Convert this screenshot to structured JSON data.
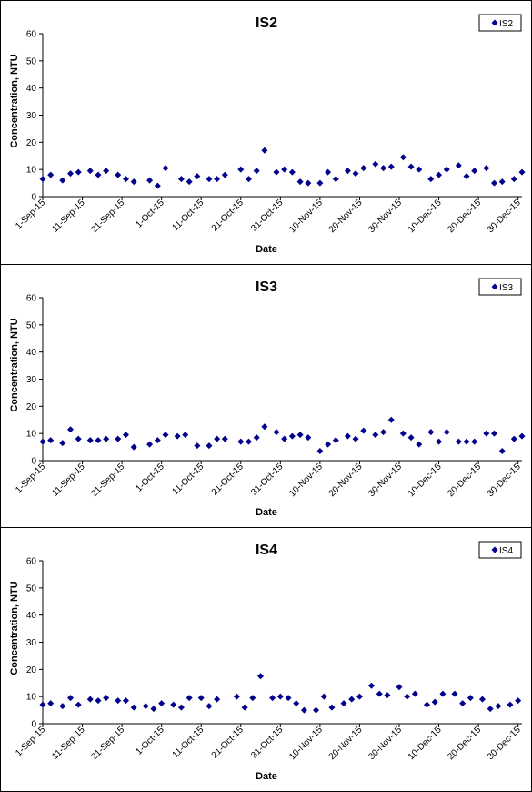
{
  "chart_data": [
    {
      "type": "scatter",
      "title": "IS2",
      "xlabel": "Date",
      "ylabel": "Concentration, NTU",
      "xlim": [
        "2015-09-01",
        "2015-12-31"
      ],
      "ylim": [
        0,
        60
      ],
      "yticks": [
        0,
        10,
        20,
        30,
        40,
        50,
        60
      ],
      "xtick_labels": [
        "1-Sep-15",
        "11-Sep-15",
        "21-Sep-15",
        "1-Oct-15",
        "11-Oct-15",
        "21-Oct-15",
        "31-Oct-15",
        "10-Nov-15",
        "20-Nov-15",
        "30-Nov-15",
        "10-Dec-15",
        "20-Dec-15",
        "30-Dec-15"
      ],
      "xtick_dates": [
        "2015-09-01",
        "2015-09-11",
        "2015-09-21",
        "2015-10-01",
        "2015-10-11",
        "2015-10-21",
        "2015-10-31",
        "2015-11-10",
        "2015-11-20",
        "2015-11-30",
        "2015-12-10",
        "2015-12-20",
        "2015-12-30"
      ],
      "legend": "top-right",
      "grid": false,
      "marker_color": "#00008B",
      "series": [
        {
          "name": "IS2",
          "points": [
            [
              "2015-09-01",
              6.5
            ],
            [
              "2015-09-03",
              8
            ],
            [
              "2015-09-06",
              6
            ],
            [
              "2015-09-08",
              8.5
            ],
            [
              "2015-09-10",
              9
            ],
            [
              "2015-09-13",
              9.5
            ],
            [
              "2015-09-15",
              8
            ],
            [
              "2015-09-17",
              9.5
            ],
            [
              "2015-09-20",
              8
            ],
            [
              "2015-09-22",
              6.5
            ],
            [
              "2015-09-24",
              5.5
            ],
            [
              "2015-09-28",
              6
            ],
            [
              "2015-09-30",
              4
            ],
            [
              "2015-10-02",
              10.5
            ],
            [
              "2015-10-06",
              6.5
            ],
            [
              "2015-10-08",
              5.5
            ],
            [
              "2015-10-10",
              7.5
            ],
            [
              "2015-10-13",
              6.5
            ],
            [
              "2015-10-15",
              6.5
            ],
            [
              "2015-10-17",
              8
            ],
            [
              "2015-10-21",
              10
            ],
            [
              "2015-10-23",
              6.5
            ],
            [
              "2015-10-25",
              9.5
            ],
            [
              "2015-10-27",
              17
            ],
            [
              "2015-10-30",
              9
            ],
            [
              "2015-11-01",
              10
            ],
            [
              "2015-11-03",
              9
            ],
            [
              "2015-11-05",
              5.5
            ],
            [
              "2015-11-07",
              5
            ],
            [
              "2015-11-10",
              5
            ],
            [
              "2015-11-12",
              9
            ],
            [
              "2015-11-14",
              6.5
            ],
            [
              "2015-11-17",
              9.5
            ],
            [
              "2015-11-19",
              8.5
            ],
            [
              "2015-11-21",
              10.5
            ],
            [
              "2015-11-24",
              12
            ],
            [
              "2015-11-26",
              10.5
            ],
            [
              "2015-11-28",
              11
            ],
            [
              "2015-12-01",
              14.5
            ],
            [
              "2015-12-03",
              11
            ],
            [
              "2015-12-05",
              10
            ],
            [
              "2015-12-08",
              6.5
            ],
            [
              "2015-12-10",
              8
            ],
            [
              "2015-12-12",
              10
            ],
            [
              "2015-12-15",
              11.5
            ],
            [
              "2015-12-17",
              7.5
            ],
            [
              "2015-12-19",
              9.5
            ],
            [
              "2015-12-22",
              10.5
            ],
            [
              "2015-12-24",
              5
            ],
            [
              "2015-12-26",
              5.5
            ],
            [
              "2015-12-29",
              6.5
            ],
            [
              "2015-12-31",
              9
            ]
          ]
        }
      ]
    },
    {
      "type": "scatter",
      "title": "IS3",
      "xlabel": "Date",
      "ylabel": "Concentration, NTU",
      "xlim": [
        "2015-09-01",
        "2015-12-31"
      ],
      "ylim": [
        0,
        60
      ],
      "yticks": [
        0,
        10,
        20,
        30,
        40,
        50,
        60
      ],
      "xtick_labels": [
        "1-Sep-15",
        "11-Sep-15",
        "21-Sep-15",
        "1-Oct-15",
        "11-Oct-15",
        "21-Oct-15",
        "31-Oct-15",
        "10-Nov-15",
        "20-Nov-15",
        "30-Nov-15",
        "10-Dec-15",
        "20-Dec-15",
        "30-Dec-15"
      ],
      "xtick_dates": [
        "2015-09-01",
        "2015-09-11",
        "2015-09-21",
        "2015-10-01",
        "2015-10-11",
        "2015-10-21",
        "2015-10-31",
        "2015-11-10",
        "2015-11-20",
        "2015-11-30",
        "2015-12-10",
        "2015-12-20",
        "2015-12-30"
      ],
      "legend": "top-right",
      "grid": false,
      "marker_color": "#00008B",
      "series": [
        {
          "name": "IS3",
          "points": [
            [
              "2015-09-01",
              7
            ],
            [
              "2015-09-03",
              7.5
            ],
            [
              "2015-09-06",
              6.5
            ],
            [
              "2015-09-08",
              11.5
            ],
            [
              "2015-09-10",
              8
            ],
            [
              "2015-09-13",
              7.5
            ],
            [
              "2015-09-15",
              7.5
            ],
            [
              "2015-09-17",
              8
            ],
            [
              "2015-09-20",
              8
            ],
            [
              "2015-09-22",
              9.5
            ],
            [
              "2015-09-24",
              5
            ],
            [
              "2015-09-28",
              6
            ],
            [
              "2015-09-30",
              7.5
            ],
            [
              "2015-10-02",
              9.5
            ],
            [
              "2015-10-05",
              9
            ],
            [
              "2015-10-07",
              9.5
            ],
            [
              "2015-10-10",
              5.5
            ],
            [
              "2015-10-13",
              5.5
            ],
            [
              "2015-10-15",
              8
            ],
            [
              "2015-10-17",
              8
            ],
            [
              "2015-10-21",
              7
            ],
            [
              "2015-10-23",
              7
            ],
            [
              "2015-10-25",
              8.5
            ],
            [
              "2015-10-27",
              12.5
            ],
            [
              "2015-10-30",
              10.5
            ],
            [
              "2015-11-01",
              8
            ],
            [
              "2015-11-03",
              9
            ],
            [
              "2015-11-05",
              9.5
            ],
            [
              "2015-11-07",
              8.5
            ],
            [
              "2015-11-10",
              3.5
            ],
            [
              "2015-11-12",
              6
            ],
            [
              "2015-11-14",
              7.5
            ],
            [
              "2015-11-17",
              9
            ],
            [
              "2015-11-19",
              8
            ],
            [
              "2015-11-21",
              11
            ],
            [
              "2015-11-24",
              9.5
            ],
            [
              "2015-11-26",
              10.5
            ],
            [
              "2015-11-28",
              15
            ],
            [
              "2015-12-01",
              10
            ],
            [
              "2015-12-03",
              8.5
            ],
            [
              "2015-12-05",
              6
            ],
            [
              "2015-12-08",
              10.5
            ],
            [
              "2015-12-10",
              7
            ],
            [
              "2015-12-12",
              10.5
            ],
            [
              "2015-12-15",
              7
            ],
            [
              "2015-12-17",
              7
            ],
            [
              "2015-12-19",
              7
            ],
            [
              "2015-12-22",
              10
            ],
            [
              "2015-12-24",
              10
            ],
            [
              "2015-12-26",
              3.5
            ],
            [
              "2015-12-29",
              8
            ],
            [
              "2015-12-31",
              9
            ]
          ]
        }
      ]
    },
    {
      "type": "scatter",
      "title": "IS4",
      "xlabel": "Date",
      "ylabel": "Concentration, NTU",
      "xlim": [
        "2015-09-01",
        "2015-12-31"
      ],
      "ylim": [
        0,
        60
      ],
      "yticks": [
        0,
        10,
        20,
        30,
        40,
        50,
        60
      ],
      "xtick_labels": [
        "1-Sep-15",
        "11-Sep-15",
        "21-Sep-15",
        "1-Oct-15",
        "11-Oct-15",
        "21-Oct-15",
        "31-Oct-15",
        "10-Nov-15",
        "20-Nov-15",
        "30-Nov-15",
        "10-Dec-15",
        "20-Dec-15",
        "30-Dec-15"
      ],
      "xtick_dates": [
        "2015-09-01",
        "2015-09-11",
        "2015-09-21",
        "2015-10-01",
        "2015-10-11",
        "2015-10-21",
        "2015-10-31",
        "2015-11-10",
        "2015-11-20",
        "2015-11-30",
        "2015-12-10",
        "2015-12-20",
        "2015-12-30"
      ],
      "legend": "top-right",
      "grid": false,
      "marker_color": "#00008B",
      "series": [
        {
          "name": "IS4",
          "points": [
            [
              "2015-09-01",
              7
            ],
            [
              "2015-09-03",
              7.5
            ],
            [
              "2015-09-06",
              6.5
            ],
            [
              "2015-09-08",
              9.5
            ],
            [
              "2015-09-10",
              7
            ],
            [
              "2015-09-13",
              9
            ],
            [
              "2015-09-15",
              8.5
            ],
            [
              "2015-09-17",
              9.5
            ],
            [
              "2015-09-20",
              8.5
            ],
            [
              "2015-09-22",
              8.5
            ],
            [
              "2015-09-24",
              6
            ],
            [
              "2015-09-27",
              6.5
            ],
            [
              "2015-09-29",
              5.5
            ],
            [
              "2015-10-01",
              7.5
            ],
            [
              "2015-10-04",
              7
            ],
            [
              "2015-10-06",
              6
            ],
            [
              "2015-10-08",
              9.5
            ],
            [
              "2015-10-11",
              9.5
            ],
            [
              "2015-10-13",
              6.5
            ],
            [
              "2015-10-15",
              9
            ],
            [
              "2015-10-20",
              10
            ],
            [
              "2015-10-22",
              6
            ],
            [
              "2015-10-24",
              9.5
            ],
            [
              "2015-10-26",
              17.5
            ],
            [
              "2015-10-29",
              9.5
            ],
            [
              "2015-10-31",
              10
            ],
            [
              "2015-11-02",
              9.5
            ],
            [
              "2015-11-04",
              7.5
            ],
            [
              "2015-11-06",
              5
            ],
            [
              "2015-11-09",
              5
            ],
            [
              "2015-11-11",
              10
            ],
            [
              "2015-11-13",
              6
            ],
            [
              "2015-11-16",
              7.5
            ],
            [
              "2015-11-18",
              9
            ],
            [
              "2015-11-20",
              10
            ],
            [
              "2015-11-23",
              14
            ],
            [
              "2015-11-25",
              11
            ],
            [
              "2015-11-27",
              10.5
            ],
            [
              "2015-11-30",
              13.5
            ],
            [
              "2015-12-02",
              10
            ],
            [
              "2015-12-04",
              11
            ],
            [
              "2015-12-07",
              7
            ],
            [
              "2015-12-09",
              8
            ],
            [
              "2015-12-11",
              11
            ],
            [
              "2015-12-14",
              11
            ],
            [
              "2015-12-16",
              7.5
            ],
            [
              "2015-12-18",
              9.5
            ],
            [
              "2015-12-21",
              9
            ],
            [
              "2015-12-23",
              5.5
            ],
            [
              "2015-12-25",
              6.5
            ],
            [
              "2015-12-28",
              7
            ],
            [
              "2015-12-30",
              8.5
            ]
          ]
        }
      ]
    }
  ]
}
